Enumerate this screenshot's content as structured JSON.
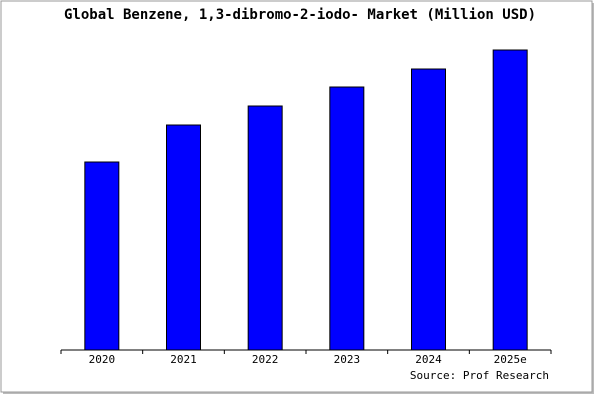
{
  "chart_data": {
    "type": "bar",
    "title": "Global Benzene, 1,3-dibromo-2-iodo- Market (Million USD)",
    "categories": [
      "2020",
      "2021",
      "2022",
      "2023",
      "2024",
      "2025e"
    ],
    "values": [
      188,
      225,
      244,
      263,
      281,
      300
    ],
    "color": "#0000ff",
    "ylim": [
      0,
      310
    ],
    "source": "Source: Prof Research"
  }
}
